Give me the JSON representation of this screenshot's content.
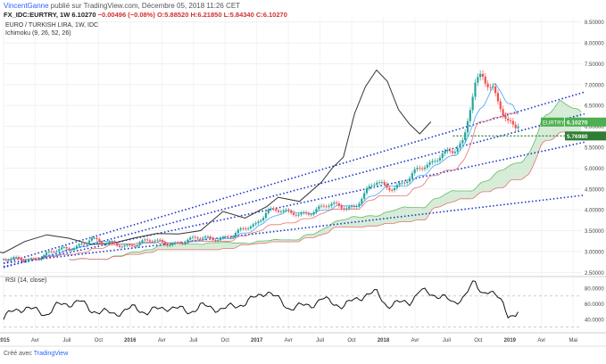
{
  "header": {
    "user": "VincentGanne",
    "published": "publié sur TradingView.com, Décembre 05, 2018 11:26 CET",
    "symbol": "FX_IDC:EURTRY, 1W",
    "last": "6.10270",
    "change": "−0.00496 (−0.08%)",
    "ohlc": "O:5.88520 H:6.21850 L:5.84340 C:6.10270"
  },
  "price_pane_label": {
    "title": "EURO / TURKISH LIRA, 1W, IDC",
    "indicator": "Ichimoku (9, 26, 52, 26)"
  },
  "rsi_pane_label": "RSI (14, close)",
  "footer": {
    "prefix": "Créé avec",
    "brand": "TradingView"
  },
  "colors": {
    "up": "#26a69a",
    "down": "#ef5350",
    "cloud_up": "#c8e6c9",
    "cloud_down": "#ffcdd2",
    "trendline": "#1a35c8",
    "horizontal": "#2e7d32",
    "lagging": "#333333",
    "tag_pair": "#4caf50",
    "tag_level": "#2e7d32"
  },
  "chart_data": {
    "type": "candlestick",
    "timeframe": "1W",
    "x_ticks": [
      "2015",
      "Avr",
      "Juil",
      "Oct",
      "2016",
      "Avr",
      "Juil",
      "Oct",
      "2017",
      "Avr",
      "Juil",
      "Oct",
      "2018",
      "Avr",
      "Juil",
      "Oct",
      "2019",
      "Avr",
      "Mai"
    ],
    "price_axis": {
      "ticks": [
        "8.50000",
        "8.00000",
        "7.50000",
        "7.00000",
        "6.50000",
        "6.00000",
        "5.50000",
        "5.00000",
        "4.50000",
        "4.00000",
        "3.50000",
        "3.00000",
        "2.50000"
      ],
      "ylim": [
        2.4,
        8.6
      ]
    },
    "price_tags": [
      {
        "label": "EURTRY",
        "value": "6.10270"
      },
      {
        "value": "5.76980"
      }
    ],
    "horizontal_level": 5.7698,
    "close_series": [
      {
        "date": "2015-01",
        "value": 2.83
      },
      {
        "date": "2015-03",
        "value": 2.76
      },
      {
        "date": "2015-05",
        "value": 2.98
      },
      {
        "date": "2015-07",
        "value": 3.03
      },
      {
        "date": "2015-09",
        "value": 3.36
      },
      {
        "date": "2015-10",
        "value": 3.15
      },
      {
        "date": "2015-12",
        "value": 3.17
      },
      {
        "date": "2016-02",
        "value": 3.22
      },
      {
        "date": "2016-04",
        "value": 3.22
      },
      {
        "date": "2016-06",
        "value": 3.25
      },
      {
        "date": "2016-08",
        "value": 3.35
      },
      {
        "date": "2016-10",
        "value": 3.36
      },
      {
        "date": "2016-12",
        "value": 3.68
      },
      {
        "date": "2017-01",
        "value": 4.04
      },
      {
        "date": "2017-03",
        "value": 3.87
      },
      {
        "date": "2017-05",
        "value": 3.99
      },
      {
        "date": "2017-07",
        "value": 4.07
      },
      {
        "date": "2017-09",
        "value": 4.12
      },
      {
        "date": "2017-10",
        "value": 4.38
      },
      {
        "date": "2017-11",
        "value": 4.62
      },
      {
        "date": "2017-12",
        "value": 4.55
      },
      {
        "date": "2018-02",
        "value": 4.75
      },
      {
        "date": "2018-04",
        "value": 5.11
      },
      {
        "date": "2018-05",
        "value": 5.46
      },
      {
        "date": "2018-06",
        "value": 5.38
      },
      {
        "date": "2018-07",
        "value": 5.52
      },
      {
        "date": "2018-08",
        "value": 7.05
      },
      {
        "date": "2018-08-20",
        "value": 7.35
      },
      {
        "date": "2018-09",
        "value": 7.2
      },
      {
        "date": "2018-09-20",
        "value": 6.95
      },
      {
        "date": "2018-10",
        "value": 6.6
      },
      {
        "date": "2018-10-20",
        "value": 6.2
      },
      {
        "date": "2018-11",
        "value": 6.0
      },
      {
        "date": "2018-11-20",
        "value": 5.9
      },
      {
        "date": "2018-12",
        "value": 6.1
      }
    ],
    "lagging_span_path": [
      {
        "date": "2014-11",
        "value": 3.05
      },
      {
        "date": "2015-01",
        "value": 2.97
      },
      {
        "date": "2015-03",
        "value": 3.24
      },
      {
        "date": "2015-05",
        "value": 3.4
      },
      {
        "date": "2015-07",
        "value": 3.32
      },
      {
        "date": "2015-09",
        "value": 3.17
      },
      {
        "date": "2015-11",
        "value": 3.2
      },
      {
        "date": "2016-01",
        "value": 3.33
      },
      {
        "date": "2016-03",
        "value": 3.43
      },
      {
        "date": "2016-05",
        "value": 3.42
      },
      {
        "date": "2016-07",
        "value": 3.5
      },
      {
        "date": "2016-09",
        "value": 3.96
      },
      {
        "date": "2016-11",
        "value": 3.8
      },
      {
        "date": "2017-01",
        "value": 4.08
      },
      {
        "date": "2017-02",
        "value": 4.3
      },
      {
        "date": "2017-04",
        "value": 4.2
      },
      {
        "date": "2017-06",
        "value": 4.66
      },
      {
        "date": "2017-07",
        "value": 5.0
      },
      {
        "date": "2017-08",
        "value": 5.26
      },
      {
        "date": "2017-09",
        "value": 6.3
      },
      {
        "date": "2017-10",
        "value": 6.95
      },
      {
        "date": "2017-11",
        "value": 7.35
      },
      {
        "date": "2017-12",
        "value": 7.08
      },
      {
        "date": "2018-01",
        "value": 6.4
      },
      {
        "date": "2018-02",
        "value": 6.05
      },
      {
        "date": "2018-03",
        "value": 5.82
      },
      {
        "date": "2018-04",
        "value": 6.11
      }
    ],
    "trendlines": [
      {
        "from": {
          "date": "2015-01",
          "value": 2.72
        },
        "to": {
          "date": "2019-06",
          "value": 6.82
        }
      },
      {
        "from": {
          "date": "2015-01",
          "value": 2.62
        },
        "to": {
          "date": "2019-06",
          "value": 6.3
        }
      },
      {
        "from": {
          "date": "2015-01",
          "value": 2.64
        },
        "to": {
          "date": "2019-06",
          "value": 5.62
        }
      },
      {
        "from": {
          "date": "2015-01",
          "value": 2.72
        },
        "to": {
          "date": "2019-06",
          "value": 4.35
        }
      }
    ],
    "rsi": {
      "axis_ticks": [
        "80.0000",
        "60.0000",
        "40.0000"
      ],
      "ylim": [
        25,
        95
      ],
      "levels": [
        70,
        30
      ],
      "series": [
        {
          "date": "2015-01",
          "value": 41
        },
        {
          "date": "2015-02",
          "value": 52
        },
        {
          "date": "2015-03",
          "value": 55
        },
        {
          "date": "2015-05",
          "value": 47
        },
        {
          "date": "2015-06",
          "value": 58
        },
        {
          "date": "2015-08",
          "value": 63
        },
        {
          "date": "2015-09",
          "value": 52
        },
        {
          "date": "2015-11",
          "value": 47
        },
        {
          "date": "2016-01",
          "value": 55
        },
        {
          "date": "2016-02",
          "value": 49
        },
        {
          "date": "2016-04",
          "value": 56
        },
        {
          "date": "2016-06",
          "value": 50
        },
        {
          "date": "2016-07",
          "value": 57
        },
        {
          "date": "2016-09",
          "value": 53
        },
        {
          "date": "2016-11",
          "value": 61
        },
        {
          "date": "2016-12",
          "value": 68
        },
        {
          "date": "2017-01",
          "value": 77
        },
        {
          "date": "2017-03",
          "value": 55
        },
        {
          "date": "2017-05",
          "value": 58
        },
        {
          "date": "2017-06",
          "value": 66
        },
        {
          "date": "2017-08",
          "value": 57
        },
        {
          "date": "2017-10",
          "value": 72
        },
        {
          "date": "2017-11",
          "value": 74
        },
        {
          "date": "2017-12",
          "value": 58
        },
        {
          "date": "2018-02",
          "value": 63
        },
        {
          "date": "2018-03",
          "value": 76
        },
        {
          "date": "2018-05",
          "value": 70
        },
        {
          "date": "2018-06",
          "value": 60
        },
        {
          "date": "2018-07",
          "value": 70
        },
        {
          "date": "2018-08",
          "value": 87
        },
        {
          "date": "2018-08-20",
          "value": 74
        },
        {
          "date": "2018-09",
          "value": 79
        },
        {
          "date": "2018-10",
          "value": 68
        },
        {
          "date": "2018-10-20",
          "value": 60
        },
        {
          "date": "2018-11",
          "value": 47
        },
        {
          "date": "2018-11-20",
          "value": 44
        },
        {
          "date": "2018-12",
          "value": 49
        }
      ]
    }
  }
}
